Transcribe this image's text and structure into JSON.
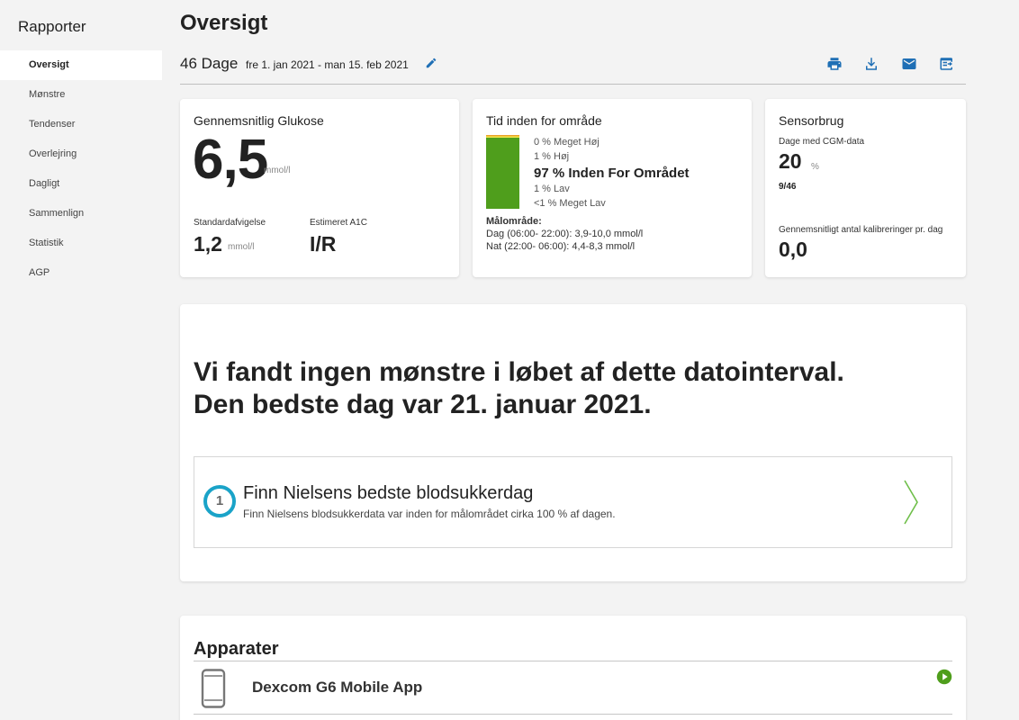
{
  "sidebar": {
    "title": "Rapporter",
    "items": [
      {
        "label": "Oversigt",
        "active": true
      },
      {
        "label": "Mønstre"
      },
      {
        "label": "Tendenser"
      },
      {
        "label": "Overlejring"
      },
      {
        "label": "Dagligt"
      },
      {
        "label": "Sammenlign"
      },
      {
        "label": "Statistik"
      },
      {
        "label": "AGP"
      }
    ]
  },
  "header": {
    "title": "Oversigt",
    "days": "46 Dage",
    "date_range": "fre 1. jan 2021 - man 15. feb 2021",
    "tools": [
      "print-icon",
      "download-icon",
      "email-icon",
      "export-icon"
    ]
  },
  "glucose_card": {
    "title": "Gennemsnitlig Glukose",
    "value": "6,5",
    "unit": "mmol/l",
    "sd_label": "Standardafvigelse",
    "sd_value": "1,2",
    "sd_unit": "mmol/l",
    "a1c_label": "Estimeret A1C",
    "a1c_value": "I/R"
  },
  "tir_card": {
    "title": "Tid inden for område",
    "very_high": "0 % Meget Høj",
    "high": "1 % Høj",
    "in_range": "97 % Inden For Området",
    "low": "1 % Lav",
    "very_low": "<1 % Meget Lav",
    "target_title": "Målområde:",
    "target_day": "Dag (06:00- 22:00): 3,9-10,0 mmol/l",
    "target_night": "Nat (22:00- 06:00): 4,4-8,3 mmol/l",
    "levels": {
      "very_high": 0,
      "high": 1,
      "in_range": 97,
      "low": 1,
      "very_low": 0.5
    },
    "colors": {
      "very_high": "#e8a32a",
      "high": "#f2e94e",
      "in_range": "#4f9e1c",
      "low": "#c0392b",
      "very_low": "#8b1a1a"
    }
  },
  "sensor_card": {
    "title": "Sensorbrug",
    "cgm_label": "Dage med CGM-data",
    "cgm_value": "20",
    "cgm_unit": "%",
    "cgm_fraction": "9/46",
    "calib_label": "Gennemsnitligt antal kalibreringer pr. dag",
    "calib_value": "0,0"
  },
  "patterns": {
    "heading_line1": "Vi fandt ingen mønstre i løbet af dette datointerval.",
    "heading_line2": "Den bedste dag var 21. januar 2021.",
    "item_number": "1",
    "item_title": "Finn Nielsens bedste blodsukkerdag",
    "item_subtitle": "Finn Nielsens blodsukkerdata var inden for målområdet cirka 100 % af dagen."
  },
  "devices": {
    "title": "Apparater",
    "items": [
      {
        "name": "Dexcom G6 Mobile App"
      }
    ]
  },
  "colors": {
    "accent": "#1f6fb5",
    "badge": "#1aa3c8",
    "play": "#4f9e1c"
  }
}
